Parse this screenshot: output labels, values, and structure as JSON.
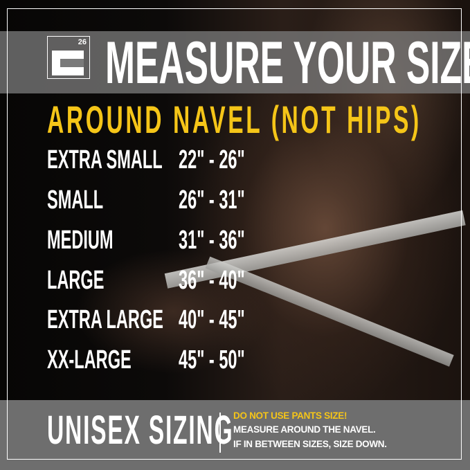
{
  "header": {
    "logo_text": "26",
    "title": "MEASURE YOUR SIZE"
  },
  "subtitle": "AROUND NAVEL (NOT HIPS)",
  "sizes": [
    {
      "label": "EXTRA SMALL",
      "range": "22\" - 26\""
    },
    {
      "label": "SMALL",
      "range": "26\" - 31\""
    },
    {
      "label": "MEDIUM",
      "range": "31\" - 36\""
    },
    {
      "label": "LARGE",
      "range": "36\" - 40\""
    },
    {
      "label": "EXTRA LARGE",
      "range": "40\" - 45\""
    },
    {
      "label": "XX-LARGE",
      "range": "45\" - 50\""
    }
  ],
  "footer": {
    "unisex": "UNISEX SIZING",
    "warning": "DO NOT USE PANTS SIZE!",
    "line1": "MEASURE AROUND THE NAVEL.",
    "line2": "IF IN BETWEEN SIZES, SIZE DOWN."
  },
  "colors": {
    "accent": "#f5c518",
    "text": "#ffffff",
    "band": "#787878"
  }
}
